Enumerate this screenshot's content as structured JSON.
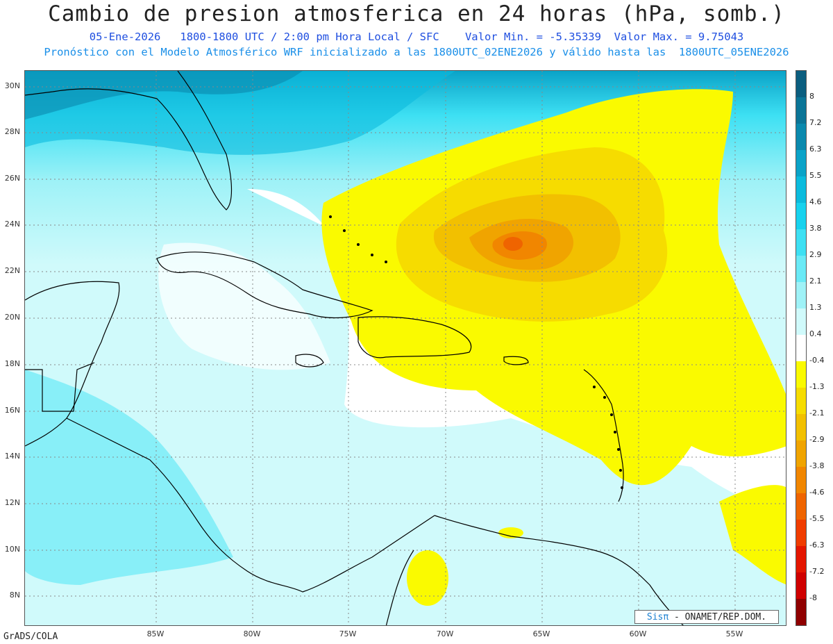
{
  "title": "Cambio de presion atmosferica en 24 horas (hPa, somb.)",
  "subtitle_line1": "05-Ene-2026   1800-1800 UTC / 2:00 pm Hora Local / SFC    Valor Min. = -5.35339  Valor Max. = 9.75043",
  "subtitle_line2": "Pronóstico con el Modelo Atmosférico WRF inicializado a las 1800UTC_02ENE2026 y válido hasta las  1800UTC_05ENE2026",
  "lat_labels": [
    "30N",
    "28N",
    "26N",
    "24N",
    "22N",
    "20N",
    "18N",
    "16N",
    "14N",
    "12N",
    "10N",
    "8N"
  ],
  "lon_labels": [
    "85W",
    "80W",
    "75W",
    "70W",
    "65W",
    "60W",
    "55W"
  ],
  "colorbar": {
    "labels": [
      "8",
      "7.2",
      "6.3",
      "5.5",
      "4.6",
      "3.8",
      "2.9",
      "2.1",
      "1.3",
      "0.4",
      "-0.4",
      "-1.3",
      "-2.1",
      "-2.9",
      "-3.8",
      "-4.6",
      "-5.5",
      "-6.3",
      "-7.2",
      "-8"
    ],
    "colors": [
      "#0b5e7f",
      "#0b7597",
      "#0a89ad",
      "#0aa3c8",
      "#0bbbdd",
      "#17d2ee",
      "#3de0f3",
      "#6aeaf6",
      "#9ff2f7",
      "#d0fafb",
      "#ffffff",
      "#fafa00",
      "#f6dc00",
      "#f2c000",
      "#f0a400",
      "#f18600",
      "#ef6400",
      "#f03c00",
      "#e41600",
      "#cf0000",
      "#8f0000"
    ]
  },
  "credit": "GrADS/COLA",
  "logo": {
    "sis": "Sisπ",
    "text": " - ONAMET/REP.DOM."
  }
}
